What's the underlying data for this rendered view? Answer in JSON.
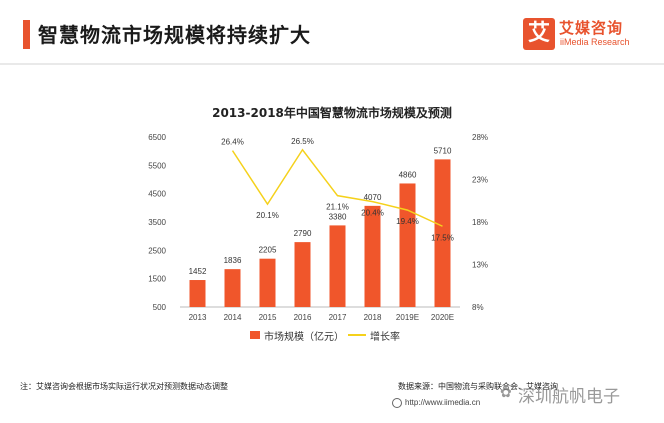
{
  "header": {
    "title": "智慧物流市场规模将持续扩大",
    "logo_mark": "艾",
    "logo_cn": "艾媒咨询",
    "logo_en": "iiMedia Research"
  },
  "chart_data": {
    "type": "bar",
    "title": "2013-2018年中国智慧物流市场规模及预测",
    "categories": [
      "2013",
      "2014",
      "2015",
      "2016",
      "2017",
      "2018",
      "2019E",
      "2020E"
    ],
    "series": [
      {
        "name": "市场规模（亿元）",
        "type": "bar",
        "axis": "left",
        "values": [
          1452,
          1836,
          2205,
          2790,
          3380,
          4070,
          4860,
          5710
        ]
      },
      {
        "name": "增长率",
        "type": "line",
        "axis": "right",
        "values": [
          null,
          26.4,
          20.1,
          26.5,
          21.1,
          20.4,
          19.4,
          17.5
        ]
      }
    ],
    "bar_labels": [
      "1452",
      "1836",
      "2205",
      "2790",
      "3380",
      "4070",
      "4860",
      "5710"
    ],
    "line_labels": [
      "",
      "26.4%",
      "20.1%",
      "26.5%",
      "21.1%",
      "20.4%",
      "19.4%",
      "17.5%"
    ],
    "y_left": {
      "ylim": [
        500,
        6500
      ],
      "ticks": [
        "6500",
        "5500",
        "4500",
        "3500",
        "2500",
        "1500",
        "500"
      ]
    },
    "y_right": {
      "ylim": [
        8,
        28
      ],
      "ticks": [
        "28%",
        "23%",
        "18%",
        "13%",
        "8%"
      ]
    },
    "grid": false,
    "legend_position": "bottom",
    "colors": {
      "bar": "#f0562b",
      "line": "#f5d11b"
    }
  },
  "footer": {
    "note": "注：艾媒咨询会根据市场实际运行状况对预测数据动态调整",
    "source": "数据来源：中国物流与采购联合会、艾媒咨询",
    "website": "http://www.iimedia.cn",
    "watermark": "深圳航帆电子"
  }
}
